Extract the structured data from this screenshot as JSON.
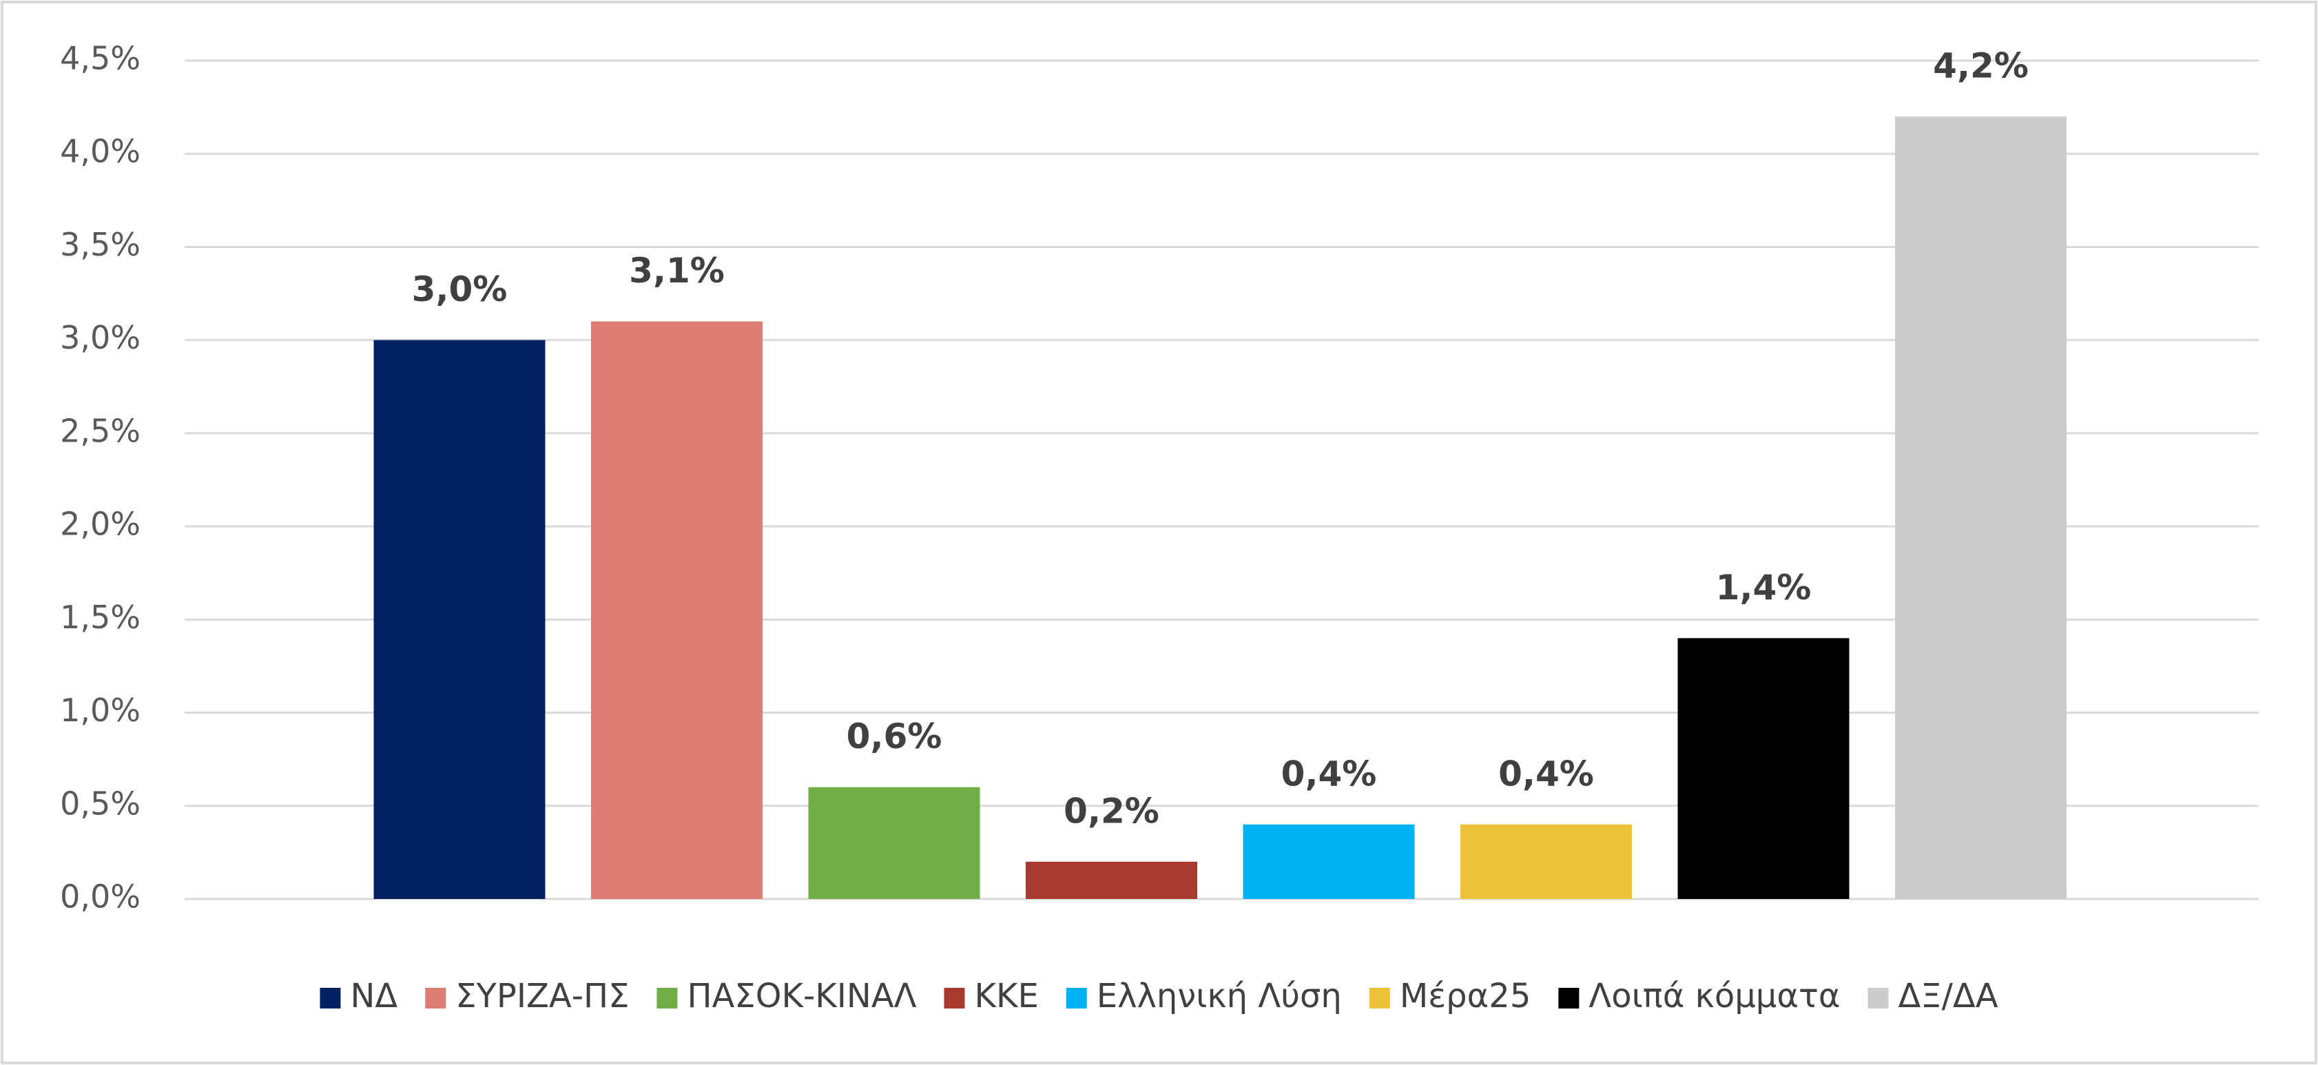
{
  "chart_data": {
    "type": "bar",
    "ylim": [
      0,
      4.5
    ],
    "yticks": [
      {
        "value": 0,
        "label": "0,0%"
      },
      {
        "value": 0.5,
        "label": "0,5%"
      },
      {
        "value": 1,
        "label": "1,0%"
      },
      {
        "value": 1.5,
        "label": "1,5%"
      },
      {
        "value": 2,
        "label": "2,0%"
      },
      {
        "value": 2.5,
        "label": "2,5%"
      },
      {
        "value": 3,
        "label": "3,0%"
      },
      {
        "value": 3.5,
        "label": "3,5%"
      },
      {
        "value": 4,
        "label": "4,0%"
      },
      {
        "value": 4.5,
        "label": "4,5%"
      }
    ],
    "grid": true,
    "legend": "bottom",
    "series": [
      {
        "name": "ΝΔ",
        "color": "#002060",
        "values": [
          3.0
        ],
        "value_labels": [
          "3,0%"
        ]
      },
      {
        "name": "ΣΥΡΙΖΑ-ΠΣ",
        "color": "#dd7e75",
        "values": [
          3.1
        ],
        "value_labels": [
          "3,1%"
        ]
      },
      {
        "name": "ΠΑΣΟΚ-ΚΙΝΑΛ",
        "color": "#70ad47",
        "values": [
          0.6
        ],
        "value_labels": [
          "0,6%"
        ]
      },
      {
        "name": "ΚΚΕ",
        "color": "#a9382f",
        "values": [
          0.2
        ],
        "value_labels": [
          "0,2%"
        ]
      },
      {
        "name": "Ελληνική Λύση",
        "color": "#00b0f0",
        "values": [
          0.4
        ],
        "value_labels": [
          "0,4%"
        ]
      },
      {
        "name": "Μέρα25",
        "color": "#ebc33a",
        "values": [
          0.4
        ],
        "value_labels": [
          "0,4%"
        ]
      },
      {
        "name": "Λοιπά κόμματα",
        "color": "#000000",
        "values": [
          1.4
        ],
        "value_labels": [
          "1,4%"
        ]
      },
      {
        "name": "ΔΞ/ΔΑ",
        "color": "#cccccc",
        "values": [
          4.2
        ],
        "value_labels": [
          "4,2%"
        ]
      }
    ]
  }
}
